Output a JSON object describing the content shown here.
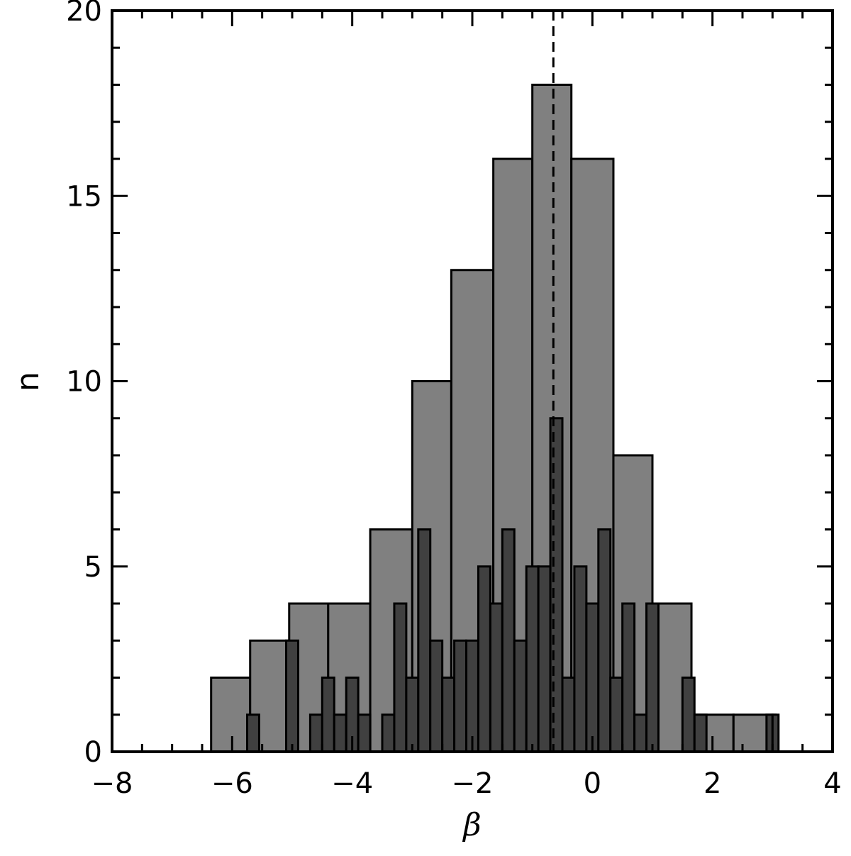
{
  "chart_data": {
    "type": "histogram",
    "title": "",
    "xlabel": "β",
    "ylabel": "n",
    "xlim": [
      -8,
      4
    ],
    "ylim": [
      0,
      20
    ],
    "x_ticks": [
      -8,
      -6,
      -4,
      -2,
      0,
      2,
      4
    ],
    "x_tick_labels": [
      "−8",
      "−6",
      "−4",
      "−2",
      "0",
      "2",
      "4"
    ],
    "y_ticks": [
      0,
      5,
      10,
      15,
      20
    ],
    "y_tick_labels": [
      "0",
      "5",
      "10",
      "15",
      "20"
    ],
    "grid": false,
    "reference_line": {
      "x": -0.65,
      "style": "dashed",
      "color": "#000000"
    },
    "series": [
      {
        "fill": "#808080",
        "bins": [
          {
            "x0": -6.35,
            "x1": -5.7,
            "n": 2
          },
          {
            "x0": -5.7,
            "x1": -5.05,
            "n": 3
          },
          {
            "x0": -5.05,
            "x1": -4.4,
            "n": 4
          },
          {
            "x0": -4.4,
            "x1": -3.7,
            "n": 4
          },
          {
            "x0": -3.7,
            "x1": -3.0,
            "n": 6
          },
          {
            "x0": -3.0,
            "x1": -2.35,
            "n": 10
          },
          {
            "x0": -2.35,
            "x1": -1.65,
            "n": 13
          },
          {
            "x0": -1.65,
            "x1": -1.0,
            "n": 16
          },
          {
            "x0": -1.0,
            "x1": -0.35,
            "n": 18
          },
          {
            "x0": -0.35,
            "x1": 0.35,
            "n": 16
          },
          {
            "x0": 0.35,
            "x1": 1.0,
            "n": 8
          },
          {
            "x0": 1.0,
            "x1": 1.65,
            "n": 4
          },
          {
            "x0": 1.65,
            "x1": 2.35,
            "n": 1
          },
          {
            "x0": 2.35,
            "x1": 3.05,
            "n": 1
          }
        ]
      },
      {
        "fill": "#404040",
        "bins": [
          {
            "x0": -5.75,
            "x1": -5.55,
            "n": 1
          },
          {
            "x0": -5.1,
            "x1": -4.9,
            "n": 3
          },
          {
            "x0": -4.7,
            "x1": -4.5,
            "n": 1
          },
          {
            "x0": -4.5,
            "x1": -4.3,
            "n": 2
          },
          {
            "x0": -4.3,
            "x1": -4.1,
            "n": 1
          },
          {
            "x0": -4.1,
            "x1": -3.9,
            "n": 2
          },
          {
            "x0": -3.9,
            "x1": -3.7,
            "n": 1
          },
          {
            "x0": -3.5,
            "x1": -3.3,
            "n": 1
          },
          {
            "x0": -3.3,
            "x1": -3.1,
            "n": 4
          },
          {
            "x0": -3.1,
            "x1": -2.9,
            "n": 2
          },
          {
            "x0": -2.9,
            "x1": -2.7,
            "n": 6
          },
          {
            "x0": -2.7,
            "x1": -2.5,
            "n": 3
          },
          {
            "x0": -2.5,
            "x1": -2.3,
            "n": 2
          },
          {
            "x0": -2.3,
            "x1": -2.1,
            "n": 3
          },
          {
            "x0": -2.1,
            "x1": -1.9,
            "n": 3
          },
          {
            "x0": -1.9,
            "x1": -1.7,
            "n": 5
          },
          {
            "x0": -1.7,
            "x1": -1.5,
            "n": 4
          },
          {
            "x0": -1.5,
            "x1": -1.3,
            "n": 6
          },
          {
            "x0": -1.3,
            "x1": -1.1,
            "n": 3
          },
          {
            "x0": -1.1,
            "x1": -0.9,
            "n": 5
          },
          {
            "x0": -0.9,
            "x1": -0.7,
            "n": 5
          },
          {
            "x0": -0.7,
            "x1": -0.5,
            "n": 9
          },
          {
            "x0": -0.5,
            "x1": -0.3,
            "n": 2
          },
          {
            "x0": -0.3,
            "x1": -0.1,
            "n": 5
          },
          {
            "x0": -0.1,
            "x1": 0.1,
            "n": 4
          },
          {
            "x0": 0.1,
            "x1": 0.3,
            "n": 6
          },
          {
            "x0": 0.3,
            "x1": 0.5,
            "n": 2
          },
          {
            "x0": 0.5,
            "x1": 0.7,
            "n": 4
          },
          {
            "x0": 0.7,
            "x1": 0.9,
            "n": 1
          },
          {
            "x0": 0.9,
            "x1": 1.1,
            "n": 4
          },
          {
            "x0": 1.5,
            "x1": 1.7,
            "n": 2
          },
          {
            "x0": 1.7,
            "x1": 1.9,
            "n": 1
          },
          {
            "x0": 2.9,
            "x1": 3.0,
            "n": 1
          },
          {
            "x0": 3.0,
            "x1": 3.1,
            "n": 1
          }
        ]
      }
    ]
  }
}
